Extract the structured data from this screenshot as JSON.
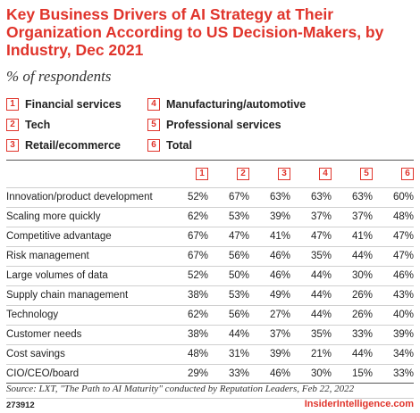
{
  "chart_data": {
    "type": "table",
    "title": "Key Business Drivers of AI Strategy at Their Organization According to US Decision-Makers, by Industry, Dec 2021",
    "subtitle": "% of respondents",
    "legend": [
      {
        "num": "1",
        "label": "Financial services"
      },
      {
        "num": "2",
        "label": "Tech"
      },
      {
        "num": "3",
        "label": "Retail/ecommerce"
      },
      {
        "num": "4",
        "label": "Manufacturing/automotive"
      },
      {
        "num": "5",
        "label": "Professional services"
      },
      {
        "num": "6",
        "label": "Total"
      }
    ],
    "columns": [
      "1",
      "2",
      "3",
      "4",
      "5",
      "6"
    ],
    "rows": [
      {
        "label": "Innovation/product development",
        "values": [
          "52%",
          "67%",
          "63%",
          "63%",
          "63%",
          "60%"
        ]
      },
      {
        "label": "Scaling more quickly",
        "values": [
          "62%",
          "53%",
          "39%",
          "37%",
          "37%",
          "48%"
        ]
      },
      {
        "label": "Competitive advantage",
        "values": [
          "67%",
          "47%",
          "41%",
          "47%",
          "41%",
          "47%"
        ]
      },
      {
        "label": "Risk management",
        "values": [
          "67%",
          "56%",
          "46%",
          "35%",
          "44%",
          "47%"
        ]
      },
      {
        "label": "Large volumes of data",
        "values": [
          "52%",
          "50%",
          "46%",
          "44%",
          "30%",
          "46%"
        ]
      },
      {
        "label": "Supply chain management",
        "values": [
          "38%",
          "53%",
          "49%",
          "44%",
          "26%",
          "43%"
        ]
      },
      {
        "label": "Technology",
        "values": [
          "62%",
          "56%",
          "27%",
          "44%",
          "26%",
          "40%"
        ]
      },
      {
        "label": "Customer needs",
        "values": [
          "38%",
          "44%",
          "37%",
          "35%",
          "33%",
          "39%"
        ]
      },
      {
        "label": "Cost savings",
        "values": [
          "48%",
          "31%",
          "39%",
          "21%",
          "44%",
          "34%"
        ]
      },
      {
        "label": "CIO/CEO/board",
        "values": [
          "29%",
          "33%",
          "46%",
          "30%",
          "15%",
          "33%"
        ]
      }
    ],
    "source": "Source: LXT, \"The Path to AI Maturity\" conducted by Reputation Leaders, Feb 22, 2022",
    "chart_id": "273912",
    "brand": "InsiderIntelligence.com"
  },
  "colors": {
    "accent": "#e0342b"
  }
}
